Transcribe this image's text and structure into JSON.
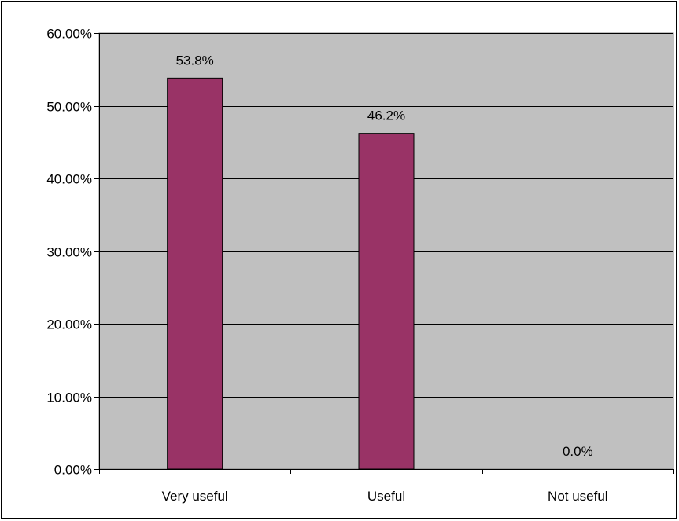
{
  "chart_data": {
    "type": "bar",
    "categories": [
      "Very useful",
      "Useful",
      "Not useful"
    ],
    "values": [
      53.8,
      46.2,
      0.0
    ],
    "data_labels": [
      "53.8%",
      "46.2%",
      "0.0%"
    ],
    "ylim": [
      0,
      60
    ],
    "yticks": [
      0,
      10,
      20,
      30,
      40,
      50,
      60
    ],
    "ytick_labels": [
      "0.00%",
      "10.00%",
      "20.00%",
      "30.00%",
      "40.00%",
      "50.00%",
      "60.00%"
    ],
    "grid": true,
    "legend": "none",
    "colors": {
      "bar": "#993366",
      "plot_background": "#C0C0C0",
      "gridline": "#000000",
      "axis": "#000000"
    }
  }
}
